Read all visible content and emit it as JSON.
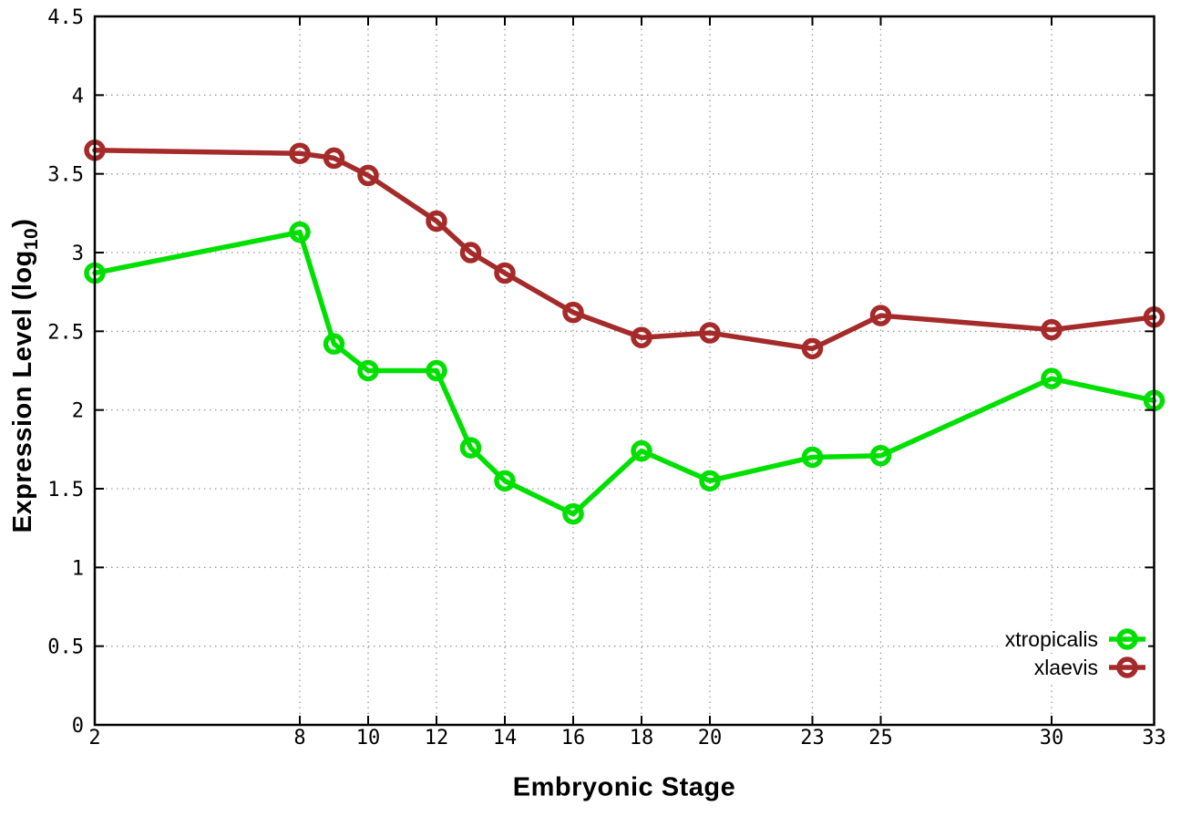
{
  "chart_data": {
    "type": "line",
    "title": "",
    "xlabel": "Embryonic Stage",
    "ylabel": "Expression Level (log10)",
    "ylabel_parts": {
      "prefix": "Expression Level (log",
      "subscript": "10",
      "suffix": ")"
    },
    "x": [
      2,
      8,
      9,
      10,
      12,
      13,
      14,
      16,
      18,
      20,
      23,
      25,
      30,
      33
    ],
    "x_tick_labels": [
      2,
      8,
      10,
      12,
      14,
      16,
      18,
      20,
      23,
      25,
      30,
      33
    ],
    "y_ticks": [
      0,
      0.5,
      1,
      1.5,
      2,
      2.5,
      3,
      3.5,
      4,
      4.5
    ],
    "xlim": [
      2,
      33
    ],
    "ylim": [
      0,
      4.5
    ],
    "grid": true,
    "legend_position": "bottom-right",
    "series": [
      {
        "name": "xtropicalis",
        "color": "#00e000",
        "values": [
          2.87,
          3.13,
          2.42,
          2.25,
          2.25,
          1.76,
          1.55,
          1.34,
          1.74,
          1.55,
          1.7,
          1.71,
          2.2,
          2.06
        ]
      },
      {
        "name": "xlaevis",
        "color": "#a52a2a",
        "values": [
          3.65,
          3.63,
          3.6,
          3.49,
          3.2,
          3.0,
          2.87,
          2.62,
          2.46,
          2.49,
          2.39,
          2.6,
          2.51,
          2.59
        ]
      }
    ],
    "colors": {
      "grid": "#999999",
      "border": "#000000",
      "background": "#ffffff"
    }
  }
}
